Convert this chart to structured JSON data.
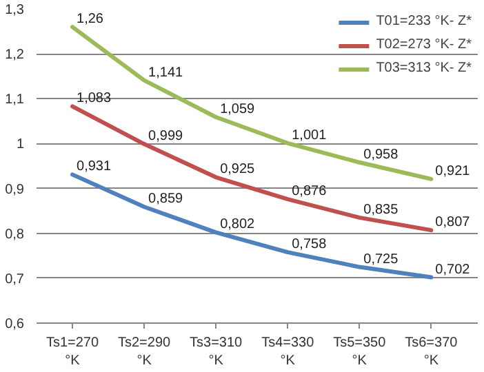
{
  "chart_data": {
    "type": "line",
    "categories": [
      "Ts1=270 °K",
      "Ts2=290 °K",
      "Ts3=310 °K",
      "Ts4=330 °K",
      "Ts5=350 °K",
      "Ts6=370 °K"
    ],
    "series": [
      {
        "name": "T01=233 °K- Z*",
        "color": "#4f81bd",
        "values": [
          0.931,
          0.859,
          0.802,
          0.758,
          0.725,
          0.702
        ],
        "value_labels": [
          "0,931",
          "0,859",
          "0,802",
          "0,758",
          "0,725",
          "0,702"
        ]
      },
      {
        "name": "T02=273 °K- Z*",
        "color": "#c0504d",
        "values": [
          1.083,
          0.999,
          0.925,
          0.876,
          0.835,
          0.807
        ],
        "value_labels": [
          "1,083",
          "0,999",
          "0,925",
          "0,876",
          "0,835",
          "0,807"
        ]
      },
      {
        "name": "T03=313 °K- Z*",
        "color": "#9bbb59",
        "values": [
          1.26,
          1.141,
          1.059,
          1.001,
          0.958,
          0.921
        ],
        "value_labels": [
          "1,26",
          "1,141",
          "1,059",
          "1,001",
          "0,958",
          "0,921"
        ]
      }
    ],
    "ylim": [
      0.6,
      1.3
    ],
    "yticks": [
      {
        "value": 0.6,
        "label": "0,6"
      },
      {
        "value": 0.7,
        "label": "0,7"
      },
      {
        "value": 0.8,
        "label": "0,8"
      },
      {
        "value": 0.9,
        "label": "0,9"
      },
      {
        "value": 1,
        "label": "1"
      },
      {
        "value": 1.1,
        "label": "1,1"
      },
      {
        "value": 1.2,
        "label": "1,2"
      },
      {
        "value": 1.3,
        "label": "1,3"
      }
    ],
    "grid": "y",
    "legend": "top right",
    "marker": "none",
    "line_style": "solid"
  }
}
